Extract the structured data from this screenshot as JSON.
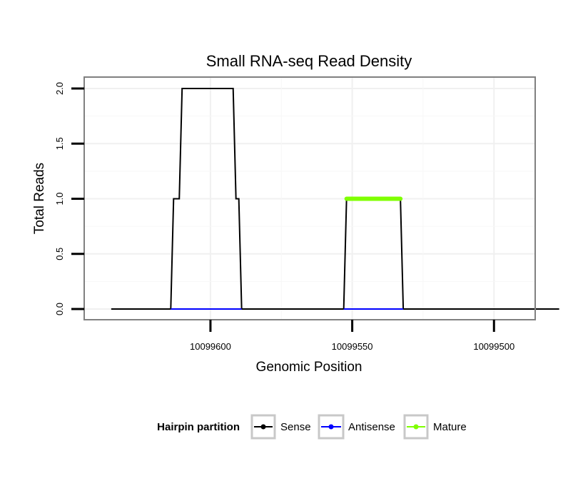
{
  "chart_data": {
    "type": "line",
    "title": "Small RNA-seq Read Density",
    "xlabel": "Genomic Position",
    "ylabel": "Total Reads",
    "x_reversed": true,
    "xlim": [
      10099640,
      10099490
    ],
    "ylim": [
      0,
      2.05
    ],
    "x_ticks": [
      10099600,
      10099550,
      10099500
    ],
    "x_tick_labels": [
      "10099600",
      "10099550",
      "10099500"
    ],
    "y_ticks": [
      0,
      0.5,
      1,
      1.5,
      2
    ],
    "y_tick_labels": [
      "0.0",
      "0.5",
      "1.0",
      "1.5",
      "2.0"
    ],
    "grid": true,
    "legend": {
      "title": "Hairpin partition",
      "position": "bottom",
      "entries": [
        {
          "label": "Sense",
          "color": "#000000"
        },
        {
          "label": "Antisense",
          "color": "#0000ff"
        },
        {
          "label": "Mature",
          "color": "#7fff00"
        }
      ]
    },
    "series": [
      {
        "name": "Sense",
        "color": "#000000",
        "points": [
          [
            10099635,
            0
          ],
          [
            10099614,
            0
          ],
          [
            10099613,
            1
          ],
          [
            10099611,
            1
          ],
          [
            10099610,
            2
          ],
          [
            10099592,
            2
          ],
          [
            10099591,
            1
          ],
          [
            10099590,
            1
          ],
          [
            10099589,
            0
          ],
          [
            10099553,
            0
          ],
          [
            10099552,
            1
          ],
          [
            10099533,
            1
          ],
          [
            10099532,
            0
          ],
          [
            10099477,
            0
          ]
        ]
      },
      {
        "name": "Antisense",
        "color": "#0000ff",
        "points": [
          [
            10099614,
            0
          ],
          [
            10099589,
            0
          ],
          [
            10099553,
            0
          ],
          [
            10099532,
            0
          ]
        ],
        "segments": [
          [
            0,
            1
          ],
          [
            2,
            3
          ]
        ]
      },
      {
        "name": "Mature",
        "color": "#7fff00",
        "points": [
          [
            10099552,
            1
          ],
          [
            10099533,
            1
          ]
        ]
      }
    ]
  }
}
